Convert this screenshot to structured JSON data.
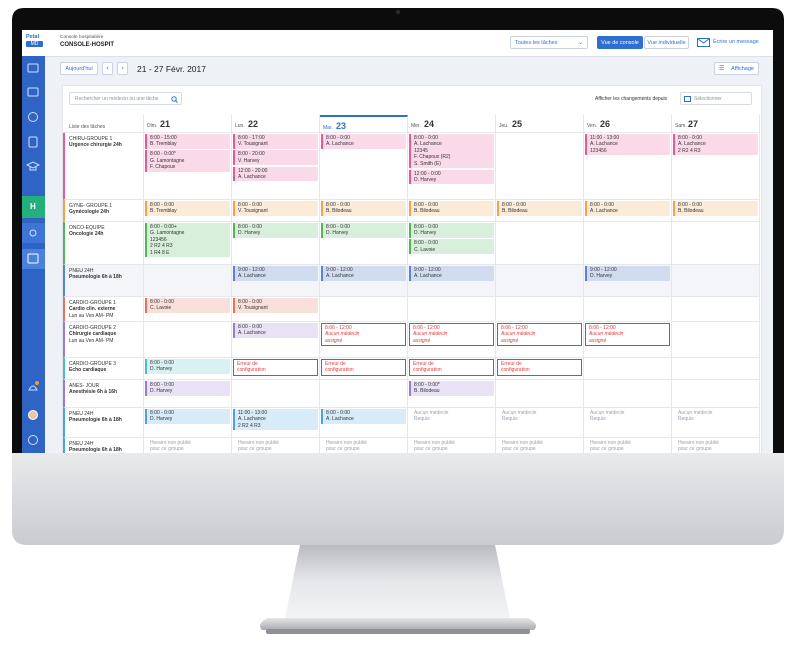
{
  "header": {
    "logo": "Petal",
    "logo_badge": "MD",
    "subtitle": "Console hospitalière",
    "title": "CONSOLE-HOSPIT",
    "filter": "Toutes les tâches",
    "view_console": "Vue de console",
    "view_individual": "Vue individuelle",
    "message": "Écrire un message"
  },
  "toolbar": {
    "today": "Aujourd'hui",
    "date_range": "21 - 27 Févr. 2017",
    "display": "Affichage"
  },
  "search": {
    "placeholder": "Rechercher un médecin ou une tâche",
    "changes_label": "Afficher les changements depuis",
    "select": "Sélectionner"
  },
  "sidebar": {
    "badge": "H"
  },
  "grid": {
    "task_header": "Liste des tâches",
    "active_day": 2,
    "days": [
      {
        "abbr": "Dim.",
        "num": "21"
      },
      {
        "abbr": "Lun.",
        "num": "22"
      },
      {
        "abbr": "Mar.",
        "num": "23"
      },
      {
        "abbr": "Mer.",
        "num": "24"
      },
      {
        "abbr": "Jeu.",
        "num": "25"
      },
      {
        "abbr": "Ven.",
        "num": "26"
      },
      {
        "abbr": "Sam.",
        "num": "27"
      }
    ],
    "rows": [
      {
        "task": [
          "CHIRU-GROUPE 1",
          "Urgence chirurgie 24h"
        ],
        "color": "#e8579b",
        "cells": [
          [
            {
              "lines": [
                "8:00 - 15:00",
                "B. Tremblay"
              ],
              "color": "#e8579b"
            },
            {
              "lines": [
                "8:00 - 0:00*",
                "G. Lamontagne",
                "F. Chapoux"
              ],
              "color": "#e8579b"
            }
          ],
          [
            {
              "lines": [
                "8:00 - 17:00",
                "V. Tousignant"
              ],
              "color": "#e8579b"
            },
            {
              "lines": [
                "8:00 - 20:00",
                "V. Harvey"
              ],
              "color": "#e8579b"
            },
            {
              "lines": [
                "12:00 - 20:00",
                "A. Lachance"
              ],
              "color": "#e8579b"
            }
          ],
          [
            {
              "lines": [
                "8:00 - 0:00",
                "A. Lachance"
              ],
              "color": "#e8579b"
            }
          ],
          [
            {
              "lines": [
                "8:00 - 0:00",
                "A. Lachance",
                "12345",
                "F. Chapoux (R2)",
                "S. Smith (E)"
              ],
              "color": "#e8579b"
            },
            {
              "lines": [
                "12:00 - 0:00",
                "D. Harvey"
              ],
              "color": "#e8579b"
            }
          ],
          [],
          [
            {
              "lines": [
                "11:00 - 13:00",
                "A. Lachance",
                "123456"
              ],
              "color": "#e8579b"
            }
          ],
          [
            {
              "lines": [
                "8:00 - 0:00",
                "A. Lachance",
                "2 R2    4 R3"
              ],
              "color": "#e8579b"
            }
          ]
        ]
      },
      {
        "task": [
          "GYNE- GROUPE 1",
          "Gynécologie 24h"
        ],
        "color": "#f2a24e",
        "cells": [
          [
            {
              "lines": [
                "8:00 - 0:00",
                "B. Tremblay"
              ],
              "color": "#f2a24e"
            }
          ],
          [
            {
              "lines": [
                "8:00 - 0:00",
                "V. Tousignant"
              ],
              "color": "#f2a24e"
            }
          ],
          [
            {
              "lines": [
                "8:00 - 0:00",
                "B. Bilodeau"
              ],
              "color": "#f2a24e"
            }
          ],
          [
            {
              "lines": [
                "8:00 - 0:00",
                "B. Bilodeau"
              ],
              "color": "#f2a24e"
            }
          ],
          [
            {
              "lines": [
                "8:00 - 0:00",
                "B. Bilodeau"
              ],
              "color": "#f2a24e"
            }
          ],
          [
            {
              "lines": [
                "8:00 - 0:00",
                "A. Lachance"
              ],
              "color": "#f2a24e"
            }
          ],
          [
            {
              "lines": [
                "8:00 - 0:00",
                "B. Bilodeau"
              ],
              "color": "#f2a24e"
            }
          ]
        ]
      },
      {
        "task": [
          "ONCO-EQUIPE",
          "Oncologie 24h"
        ],
        "color": "#4fb65a",
        "cells": [
          [
            {
              "lines": [
                "8:00 - 0:00+",
                "G. Lamontagne",
                "123456",
                "2 R2    4 R3",
                "1 R4    8 E"
              ],
              "color": "#4fb65a"
            }
          ],
          [
            {
              "lines": [
                "8:00 - 0:00",
                "D. Harvey"
              ],
              "color": "#4fb65a"
            }
          ],
          [
            {
              "lines": [
                "8:00 - 0:00",
                "D. Harvey"
              ],
              "color": "#4fb65a"
            }
          ],
          [
            {
              "lines": [
                "8:00 - 0:00",
                "D. Harvey"
              ],
              "color": "#4fb65a"
            },
            {
              "lines": [
                "8:00 - 0:00",
                "C. Lavoie"
              ],
              "color": "#4fb65a"
            }
          ],
          [],
          [],
          []
        ]
      },
      {
        "task": [
          "PNEU 24H",
          "Pneumologie 6h à 18h"
        ],
        "color": "#5b82d4",
        "cells": [
          [],
          [
            {
              "lines": [
                "9:00 - 12:00",
                "A. Lachance"
              ],
              "color": "#5b82d4"
            }
          ],
          [
            {
              "lines": [
                "9:00 - 12:00",
                "A. Lachance"
              ],
              "color": "#5b82d4"
            }
          ],
          [
            {
              "lines": [
                "9:00 - 12:00",
                "A. Lachance"
              ],
              "color": "#5b82d4"
            }
          ],
          [],
          [
            {
              "lines": [
                "9:00 - 12:00",
                "D. Harvey"
              ],
              "color": "#5b82d4"
            }
          ],
          []
        ]
      },
      {
        "task": [
          "CARDIO-GROUPE 1",
          "Cardio clin. externe",
          "Lun au Ven AM- PM"
        ],
        "color": "#e8735d",
        "cells": [
          [
            {
              "lines": [
                "8:00 - 0:00",
                "C. Lavoie"
              ],
              "color": "#e8735d"
            }
          ],
          [
            {
              "lines": [
                "8:00 - 0:00",
                "V. Tousignant"
              ],
              "color": "#e8735d"
            }
          ],
          [],
          [],
          [],
          [],
          []
        ]
      },
      {
        "task": [
          "CARDIO-GROUPE 2",
          "Chirurgie cardiaque",
          "Lun au Ven AM- PM"
        ],
        "color": "#9a7ad6",
        "cells": [
          [],
          [
            {
              "lines": [
                "8:00 - 0:00",
                "A. Lachance"
              ],
              "color": "#9a7ad6"
            }
          ],
          [
            {
              "lines": [
                "8:00 - 12:00",
                "Aucun médecin",
                "assigné"
              ],
              "color": "#e23b3b",
              "outline": true
            }
          ],
          [
            {
              "lines": [
                "8:00 - 12:00",
                "Aucun médecin",
                "assigné"
              ],
              "color": "#e23b3b",
              "outline": true
            }
          ],
          [
            {
              "lines": [
                "8:00 - 12:00",
                "Aucun médecin",
                "assigné"
              ],
              "color": "#e23b3b",
              "outline": true
            }
          ],
          [
            {
              "lines": [
                "8:00 - 12:00",
                "Aucun médecin",
                "assigné"
              ],
              "color": "#e23b3b",
              "outline": true
            }
          ],
          []
        ]
      },
      {
        "task": [
          "CARDIO-GROUPE 3",
          "Echo cardiaque"
        ],
        "color": "#4dbdbd",
        "cells": [
          [
            {
              "lines": [
                "8:00 - 0:00",
                "D. Harvey"
              ],
              "color": "#4dbdbd"
            }
          ],
          [
            {
              "lines": [
                "Erreur de",
                "configuration"
              ],
              "color": "#e23b3b",
              "outline": true
            }
          ],
          [
            {
              "lines": [
                "Erreur de",
                "configuration"
              ],
              "color": "#e23b3b",
              "outline": true
            }
          ],
          [
            {
              "lines": [
                "Erreur de",
                "configuration"
              ],
              "color": "#e23b3b",
              "outline": true
            }
          ],
          [
            {
              "lines": [
                "Erreur de",
                "configuration"
              ],
              "color": "#e23b3b",
              "outline": true
            }
          ],
          [],
          []
        ]
      },
      {
        "task": [
          "ANES- JOUR",
          "Anesthésie 6h à 16h"
        ],
        "color": "#9a7ad6",
        "cells": [
          [
            {
              "lines": [
                "8:00 - 0:00",
                "D. Harvey"
              ],
              "color": "#9a7ad6"
            }
          ],
          [],
          [],
          [
            {
              "lines": [
                "8:00 - 0:00*",
                "B. Bilodeau"
              ],
              "color": "#9a7ad6"
            }
          ],
          [],
          [],
          []
        ]
      },
      {
        "task": [
          "PNEU 24H",
          "Pneumologie 6h à 18h"
        ],
        "color": "#4aa3e0",
        "cells": [
          [
            {
              "lines": [
                "8:00 - 0:00",
                "D. Harvey"
              ],
              "color": "#4aa3e0"
            }
          ],
          [
            {
              "lines": [
                "11:00 - 13:00",
                "A. Lachance",
                "2 R2    4 R3"
              ],
              "color": "#4aa3e0"
            }
          ],
          [
            {
              "lines": [
                "8:00 - 0:00",
                "A. Lachance"
              ],
              "color": "#4aa3e0"
            }
          ],
          [
            {
              "lines": [
                "Aucun médecin",
                "Requis"
              ]
            }
          ],
          [
            {
              "lines": [
                "Aucun médecin",
                "Requis"
              ]
            }
          ],
          [
            {
              "lines": [
                "Aucun médecin",
                "Requis"
              ]
            }
          ],
          [
            {
              "lines": [
                "Aucun médecin",
                "Requis"
              ]
            }
          ]
        ]
      },
      {
        "task": [
          "PNEU 24H",
          "Pneumologie 6h à 18h"
        ],
        "color": "#4aa3e0",
        "cells": [
          [
            {
              "lines": [
                "Horaire non publié",
                "pour ce groupe"
              ]
            }
          ],
          [
            {
              "lines": [
                "Horaire non publié",
                "pour ce groupe"
              ]
            }
          ],
          [
            {
              "lines": [
                "Horaire non publié",
                "pour ce groupe"
              ]
            }
          ],
          [
            {
              "lines": [
                "Horaire non publié",
                "pour ce groupe"
              ]
            }
          ],
          [
            {
              "lines": [
                "Horaire non publié",
                "pour ce groupe"
              ]
            }
          ],
          [
            {
              "lines": [
                "Horaire non publié",
                "pour ce groupe"
              ]
            }
          ],
          [
            {
              "lines": [
                "Horaire non publié",
                "pour ce groupe"
              ]
            }
          ]
        ]
      }
    ]
  }
}
